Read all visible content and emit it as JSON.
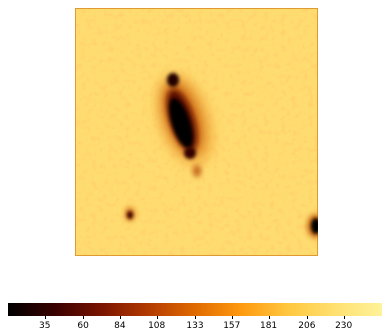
{
  "image": {
    "description_icon": "astronomical-galaxy-cutout",
    "colormap": [
      "#000000",
      "#3a0000",
      "#7a1400",
      "#b33a00",
      "#e06a00",
      "#ff9a10",
      "#ffc840",
      "#ffe070",
      "#fff29a"
    ],
    "background_color": "#ffd868"
  },
  "colorbar": {
    "min": 11,
    "max": 255,
    "ticks": [
      {
        "value": 35,
        "label": "35"
      },
      {
        "value": 60,
        "label": "60"
      },
      {
        "value": 84,
        "label": "84"
      },
      {
        "value": 108,
        "label": "108"
      },
      {
        "value": 133,
        "label": "133"
      },
      {
        "value": 157,
        "label": "157"
      },
      {
        "value": 181,
        "label": "181"
      },
      {
        "value": 206,
        "label": "206"
      },
      {
        "value": 230,
        "label": "230"
      }
    ]
  }
}
